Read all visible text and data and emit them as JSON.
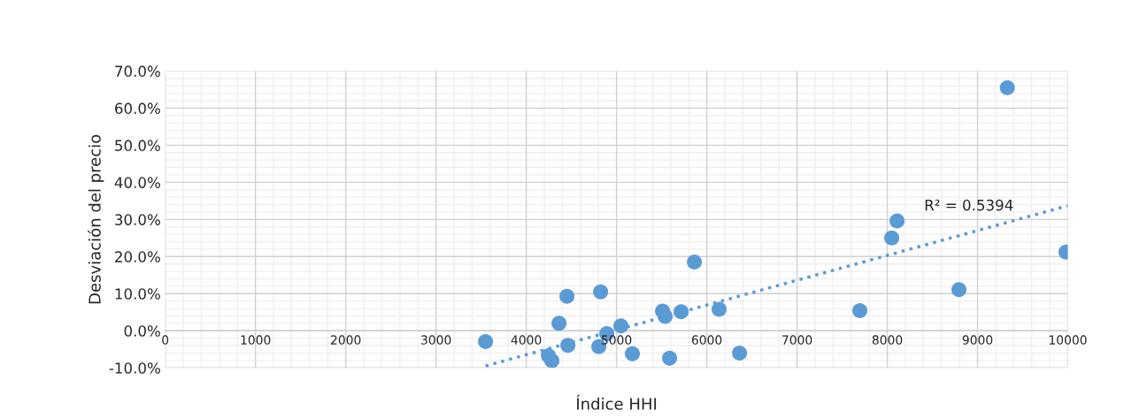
{
  "chart_data": {
    "type": "scatter",
    "xlabel": "Índice HHI",
    "ylabel": "Desviación del precio",
    "xlim": [
      0,
      10000
    ],
    "ylim": [
      -10,
      70
    ],
    "xticks": [
      0,
      1000,
      2000,
      3000,
      4000,
      5000,
      6000,
      7000,
      8000,
      9000,
      10000
    ],
    "yticks": [
      {
        "value": -10,
        "label": "-10.0%"
      },
      {
        "value": 0,
        "label": "0.0%"
      },
      {
        "value": 10,
        "label": "10.0%"
      },
      {
        "value": 20,
        "label": "20.0%"
      },
      {
        "value": 30,
        "label": "30.0%"
      },
      {
        "value": 40,
        "label": "40.0%"
      },
      {
        "value": 50,
        "label": "50.0%"
      },
      {
        "value": 60,
        "label": "60.0%"
      },
      {
        "value": 70,
        "label": "70.0%"
      }
    ],
    "grid": true,
    "marker": "circle",
    "annotations": [
      "R² = 0.5394"
    ],
    "series": [
      {
        "color": "#5b9bd5",
        "x": [
          3549,
          4245,
          4284,
          4363,
          4451,
          4461,
          4824,
          4804,
          4892,
          5049,
          5176,
          5510,
          5539,
          5588,
          5716,
          5863,
          6137,
          6363,
          7696,
          8049,
          8108,
          8794,
          9980,
          9330
        ],
        "values": [
          -2.9,
          -6.7,
          -8.1,
          2.0,
          9.3,
          -3.9,
          10.5,
          -4.3,
          -0.8,
          1.3,
          -6.2,
          5.3,
          3.9,
          -7.4,
          5.1,
          18.5,
          5.8,
          -6.0,
          5.4,
          25.0,
          29.6,
          11.1,
          21.2,
          65.5
        ]
      },
      {
        "type": "line",
        "color": "#5b9bd5",
        "line_style": "dotted",
        "marker": "none",
        "x": [
          3549,
          10000
        ],
        "values": [
          -9.5,
          33.7
        ]
      }
    ]
  }
}
